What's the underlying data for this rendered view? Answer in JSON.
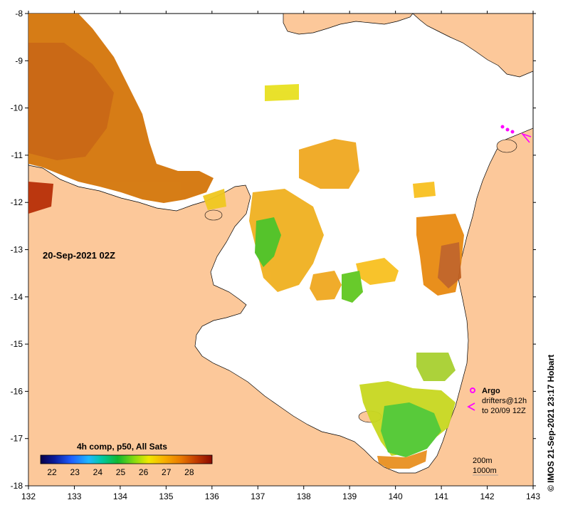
{
  "map": {
    "timestamp": "20-Sep-2021 02Z",
    "credit": "©  IMOS 21-Sep-2021 23:17 Hobart",
    "lon_ticks": [
      "132",
      "133",
      "134",
      "135",
      "136",
      "137",
      "138",
      "139",
      "140",
      "141",
      "142",
      "143"
    ],
    "lat_ticks": [
      "-8",
      "-9",
      "-10",
      "-11",
      "-12",
      "-13",
      "-14",
      "-15",
      "-16",
      "-17",
      "-18"
    ],
    "colorbar": {
      "title": "4h comp, p50, All Sats",
      "labels": [
        "22",
        "23",
        "24",
        "25",
        "26",
        "27",
        "28"
      ],
      "min": 21.5,
      "max": 29
    },
    "legend": {
      "argo_label": "Argo",
      "drifters_line1": "drifters@12h",
      "drifters_line2": "to 20/09 12Z"
    },
    "isobaths": {
      "shallow": "200m",
      "deep": "1000m"
    },
    "colors": {
      "land": "#fcc89a",
      "sea": "#ffffff",
      "argo": "#ff00ff",
      "drifter": "#ff00ff"
    }
  }
}
